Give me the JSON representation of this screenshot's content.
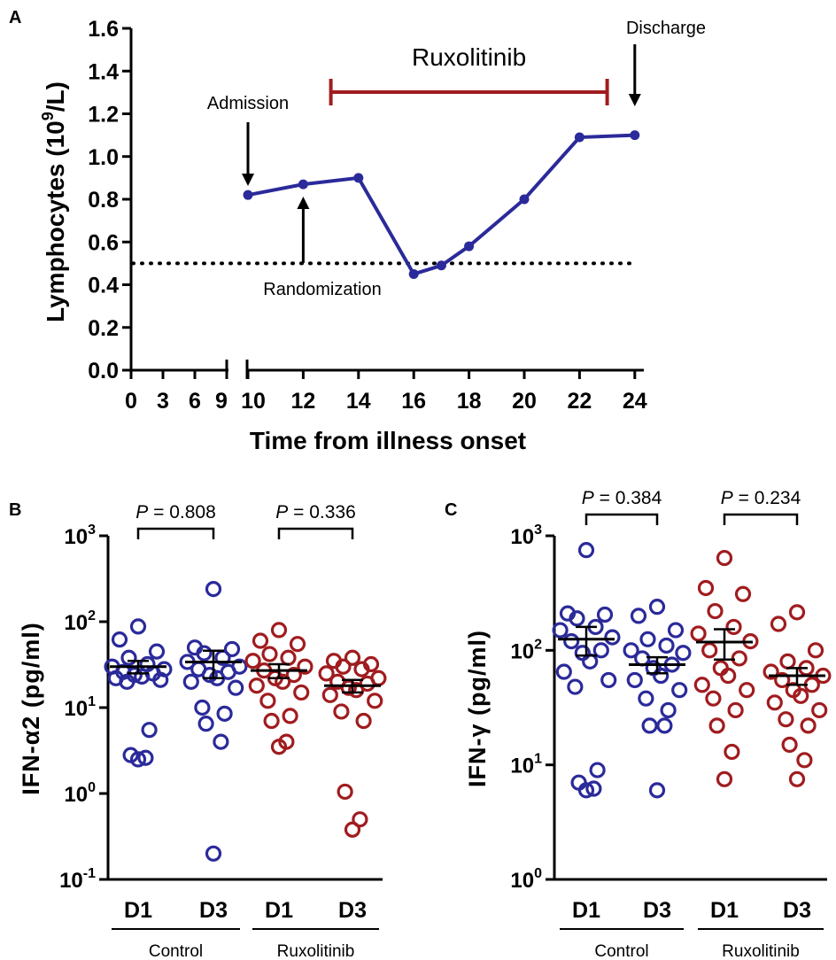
{
  "colors": {
    "blue": "#2b2a9a",
    "red": "#a01c1f",
    "black": "#000000"
  },
  "chart_data": [
    {
      "panel": "A",
      "type": "line",
      "ylabel": "Lymphocytes (10^9/L)",
      "ylabel_parts": [
        "Lymphocytes (10",
        "9",
        "/L)"
      ],
      "xlabel": "Time from illness onset",
      "ylim": [
        0,
        1.6
      ],
      "y_ticks": [
        "0.0",
        "0.2",
        "0.4",
        "0.6",
        "0.8",
        "1.0",
        "1.2",
        "1.4",
        "1.6"
      ],
      "x_ticks": [
        "0",
        "3",
        "6",
        "9",
        "10",
        "12",
        "14",
        "16",
        "18",
        "20",
        "22",
        "24"
      ],
      "x_axis_break": true,
      "series": [
        {
          "x": [
            10,
            12,
            14,
            16,
            17,
            18,
            20,
            22,
            24
          ],
          "y": [
            0.82,
            0.87,
            0.9,
            0.45,
            0.49,
            0.58,
            0.8,
            1.09,
            1.1
          ]
        }
      ],
      "reference_line": 0.5,
      "treatment_bar": {
        "label": "Ruxolitinib",
        "x_start": 13,
        "x_end": 23
      },
      "annotations": [
        {
          "label": "Admission",
          "x": 10
        },
        {
          "label": "Randomization",
          "x": 12
        },
        {
          "label": "Discharge",
          "x": 24
        }
      ]
    },
    {
      "panel": "B",
      "type": "scatter",
      "ylabel": "IFN-α2 (pg/ml)",
      "yscale": "log",
      "ylim": [
        0.1,
        1000
      ],
      "y_ticks": [
        {
          "base": "10",
          "exp": "-1"
        },
        {
          "base": "10",
          "exp": "0"
        },
        {
          "base": "10",
          "exp": "1"
        },
        {
          "base": "10",
          "exp": "2"
        },
        {
          "base": "10",
          "exp": "3"
        }
      ],
      "categories": [
        "D1",
        "D3",
        "D1",
        "D3"
      ],
      "groups": [
        "Control",
        "Ruxolitinib"
      ],
      "p_values": [
        {
          "prefix": "P",
          "text": " = 0.808"
        },
        {
          "prefix": "P",
          "text": " = 0.336"
        }
      ],
      "series": [
        {
          "values": [
            88,
            62,
            45,
            38,
            32,
            30,
            28,
            26,
            25,
            24,
            23,
            22,
            21,
            20,
            5.5,
            2.8,
            2.6,
            2.5
          ],
          "mean": 30,
          "sem": 5
        },
        {
          "values": [
            240,
            50,
            48,
            43,
            38,
            34,
            30,
            28,
            26,
            24,
            22,
            20,
            17,
            10,
            8.5,
            6.5,
            4,
            0.2
          ],
          "mean": 34,
          "sem": 12
        },
        {
          "values": [
            80,
            60,
            55,
            42,
            38,
            35,
            30,
            27,
            24,
            22,
            20,
            18,
            15,
            12,
            8,
            7,
            4,
            3.5
          ],
          "mean": 27,
          "sem": 5
        },
        {
          "values": [
            38,
            35,
            32,
            30,
            28,
            25,
            22,
            20,
            19,
            17,
            16,
            14,
            12,
            9,
            7,
            1.05,
            0.5,
            0.38
          ],
          "mean": 18,
          "sem": 3
        }
      ]
    },
    {
      "panel": "C",
      "type": "scatter",
      "ylabel": "IFN-γ (pg/ml)",
      "yscale": "log",
      "ylim": [
        1,
        1000
      ],
      "y_ticks": [
        {
          "base": "10",
          "exp": "0"
        },
        {
          "base": "10",
          "exp": "1"
        },
        {
          "base": "10",
          "exp": "2"
        },
        {
          "base": "10",
          "exp": "3"
        }
      ],
      "categories": [
        "D1",
        "D3",
        "D1",
        "D3"
      ],
      "groups": [
        "Control",
        "Ruxolitinib"
      ],
      "p_values": [
        {
          "prefix": "P",
          "text": " = 0.384"
        },
        {
          "prefix": "P",
          "text": " = 0.234"
        }
      ],
      "series": [
        {
          "values": [
            750,
            210,
            205,
            190,
            160,
            150,
            130,
            120,
            100,
            95,
            80,
            65,
            55,
            48,
            9,
            7,
            6.2,
            6
          ],
          "mean": 125,
          "sem": 35
        },
        {
          "values": [
            240,
            200,
            150,
            125,
            110,
            100,
            95,
            85,
            75,
            70,
            60,
            55,
            45,
            38,
            30,
            22,
            22,
            6
          ],
          "mean": 75,
          "sem": 12
        },
        {
          "values": [
            640,
            350,
            310,
            220,
            160,
            140,
            120,
            100,
            85,
            70,
            60,
            50,
            45,
            38,
            30,
            22,
            13,
            7.5
          ],
          "mean": 118,
          "sem": 35
        },
        {
          "values": [
            215,
            170,
            100,
            80,
            70,
            65,
            60,
            55,
            50,
            45,
            40,
            35,
            30,
            25,
            22,
            15,
            11,
            7.5
          ],
          "mean": 60,
          "sem": 10
        }
      ]
    }
  ],
  "panel_labels": [
    "A",
    "B",
    "C"
  ]
}
